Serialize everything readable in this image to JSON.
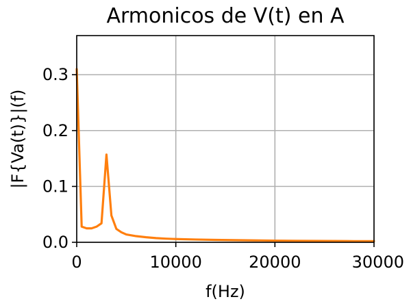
{
  "chart_data": {
    "type": "line",
    "title": "Armonicos de V(t) en A",
    "xlabel": "f(Hz)",
    "ylabel": "|F{Va(t)}|(f)",
    "xlim": [
      0,
      30000
    ],
    "ylim": [
      0,
      0.37
    ],
    "xticks": [
      0,
      10000,
      20000,
      30000
    ],
    "yticks": [
      0.0,
      0.1,
      0.2,
      0.3
    ],
    "xtick_labels": [
      "0",
      "10000",
      "20000",
      "30000"
    ],
    "ytick_labels": [
      "0.0",
      "0.1",
      "0.2",
      "0.3"
    ],
    "grid": true,
    "series": [
      {
        "color": "#ff7f0e",
        "x": [
          0,
          500,
          1000,
          1500,
          2000,
          2500,
          3000,
          3500,
          4000,
          4500,
          5000,
          6000,
          7000,
          8000,
          9000,
          10000,
          12000,
          14000,
          16000,
          18000,
          20000,
          22000,
          24000,
          26000,
          28000,
          30000
        ],
        "y": [
          0.31,
          0.028,
          0.025,
          0.025,
          0.028,
          0.034,
          0.157,
          0.048,
          0.024,
          0.018,
          0.014,
          0.011,
          0.009,
          0.0075,
          0.0065,
          0.0058,
          0.005,
          0.0043,
          0.0038,
          0.0034,
          0.003,
          0.0027,
          0.0025,
          0.0023,
          0.0021,
          0.002
        ]
      }
    ]
  }
}
